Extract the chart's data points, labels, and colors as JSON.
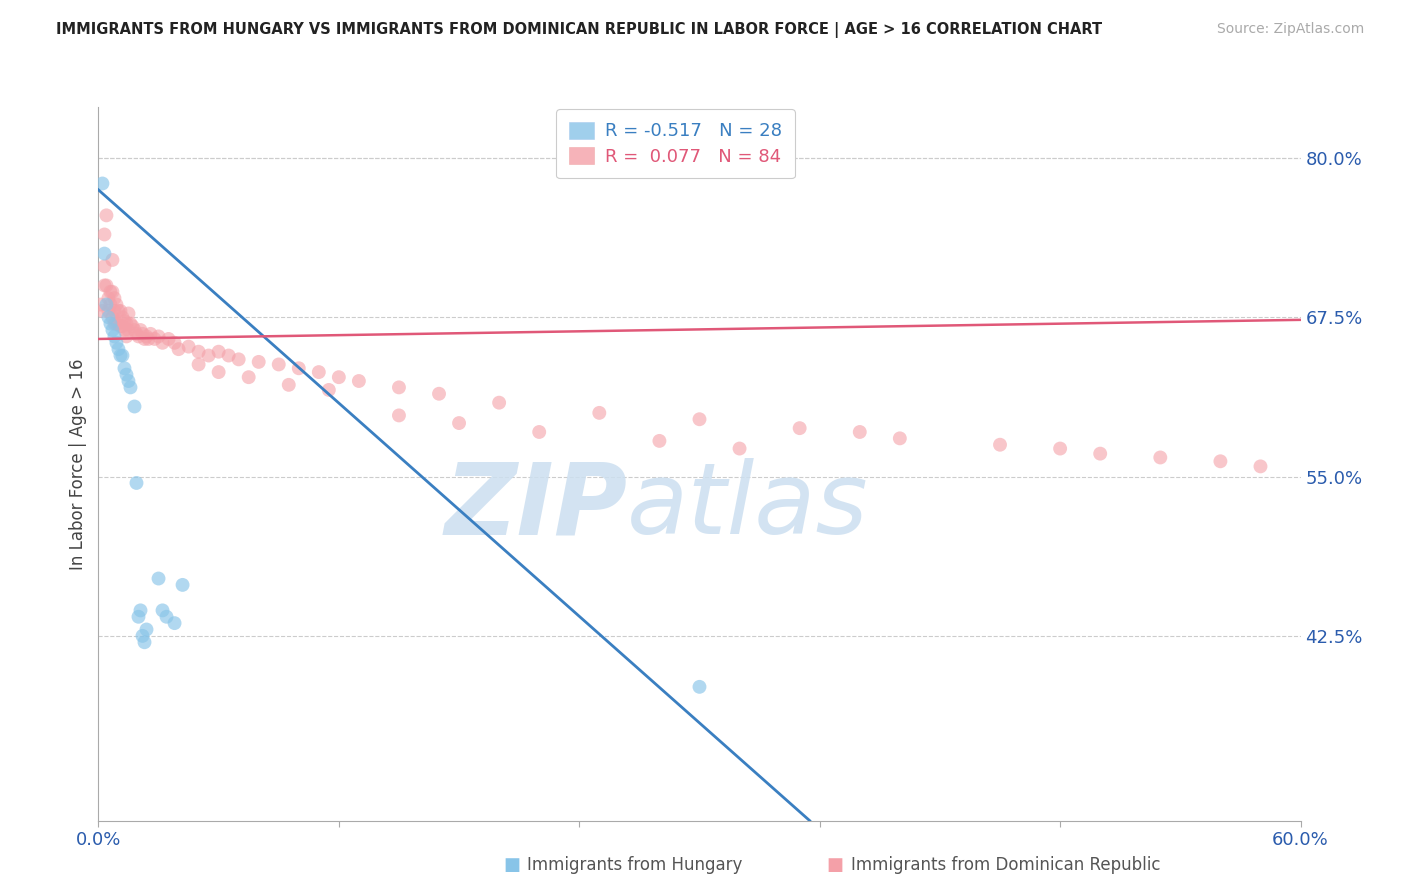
{
  "title": "IMMIGRANTS FROM HUNGARY VS IMMIGRANTS FROM DOMINICAN REPUBLIC IN LABOR FORCE | AGE > 16 CORRELATION CHART",
  "source": "Source: ZipAtlas.com",
  "ylabel": "In Labor Force | Age > 16",
  "ylabel_right_ticks": [
    0.425,
    0.55,
    0.675,
    0.8
  ],
  "ylabel_right_labels": [
    "42.5%",
    "55.0%",
    "67.5%",
    "80.0%"
  ],
  "xmin": 0.0,
  "xmax": 0.6,
  "ymin": 0.28,
  "ymax": 0.84,
  "hungary_color": "#88c4e8",
  "dr_color": "#f4a0a8",
  "hungary_line_color": "#3a7fc1",
  "dr_line_color": "#e05878",
  "legend_hungary_label_r": "R = -0.517",
  "legend_hungary_label_n": "N = 28",
  "legend_dr_label_r": "R =  0.077",
  "legend_dr_label_n": "N = 84",
  "hungary_line_x0": 0.0,
  "hungary_line_y0": 0.775,
  "hungary_line_x1": 0.355,
  "hungary_line_y1": 0.28,
  "dr_line_x0": 0.0,
  "dr_line_y0": 0.658,
  "dr_line_x1": 0.6,
  "dr_line_y1": 0.673,
  "hungary_x": [
    0.002,
    0.003,
    0.004,
    0.005,
    0.006,
    0.007,
    0.008,
    0.009,
    0.01,
    0.011,
    0.012,
    0.013,
    0.014,
    0.015,
    0.016,
    0.018,
    0.019,
    0.02,
    0.021,
    0.022,
    0.023,
    0.024,
    0.03,
    0.032,
    0.034,
    0.038,
    0.042,
    0.3
  ],
  "hungary_y": [
    0.78,
    0.725,
    0.685,
    0.675,
    0.67,
    0.665,
    0.66,
    0.655,
    0.65,
    0.645,
    0.645,
    0.635,
    0.63,
    0.625,
    0.62,
    0.605,
    0.545,
    0.44,
    0.445,
    0.425,
    0.42,
    0.43,
    0.47,
    0.445,
    0.44,
    0.435,
    0.465,
    0.385
  ],
  "dr_x": [
    0.001,
    0.002,
    0.003,
    0.003,
    0.004,
    0.004,
    0.005,
    0.005,
    0.006,
    0.006,
    0.007,
    0.007,
    0.008,
    0.008,
    0.008,
    0.009,
    0.009,
    0.01,
    0.01,
    0.011,
    0.011,
    0.012,
    0.012,
    0.013,
    0.013,
    0.014,
    0.014,
    0.015,
    0.015,
    0.016,
    0.017,
    0.018,
    0.019,
    0.02,
    0.021,
    0.022,
    0.023,
    0.024,
    0.025,
    0.026,
    0.028,
    0.03,
    0.032,
    0.035,
    0.038,
    0.04,
    0.045,
    0.05,
    0.055,
    0.06,
    0.065,
    0.07,
    0.08,
    0.09,
    0.1,
    0.11,
    0.12,
    0.13,
    0.15,
    0.17,
    0.05,
    0.06,
    0.075,
    0.095,
    0.115,
    0.2,
    0.25,
    0.3,
    0.35,
    0.38,
    0.15,
    0.18,
    0.22,
    0.28,
    0.32,
    0.4,
    0.45,
    0.48,
    0.5,
    0.53,
    0.56,
    0.58,
    0.003,
    0.007
  ],
  "dr_y": [
    0.685,
    0.68,
    0.74,
    0.7,
    0.755,
    0.7,
    0.69,
    0.68,
    0.695,
    0.685,
    0.695,
    0.675,
    0.69,
    0.68,
    0.67,
    0.685,
    0.67,
    0.68,
    0.67,
    0.68,
    0.668,
    0.675,
    0.668,
    0.672,
    0.665,
    0.67,
    0.66,
    0.678,
    0.665,
    0.67,
    0.668,
    0.665,
    0.662,
    0.66,
    0.665,
    0.662,
    0.658,
    0.66,
    0.658,
    0.662,
    0.658,
    0.66,
    0.655,
    0.658,
    0.655,
    0.65,
    0.652,
    0.648,
    0.645,
    0.648,
    0.645,
    0.642,
    0.64,
    0.638,
    0.635,
    0.632,
    0.628,
    0.625,
    0.62,
    0.615,
    0.638,
    0.632,
    0.628,
    0.622,
    0.618,
    0.608,
    0.6,
    0.595,
    0.588,
    0.585,
    0.598,
    0.592,
    0.585,
    0.578,
    0.572,
    0.58,
    0.575,
    0.572,
    0.568,
    0.565,
    0.562,
    0.558,
    0.715,
    0.72
  ]
}
